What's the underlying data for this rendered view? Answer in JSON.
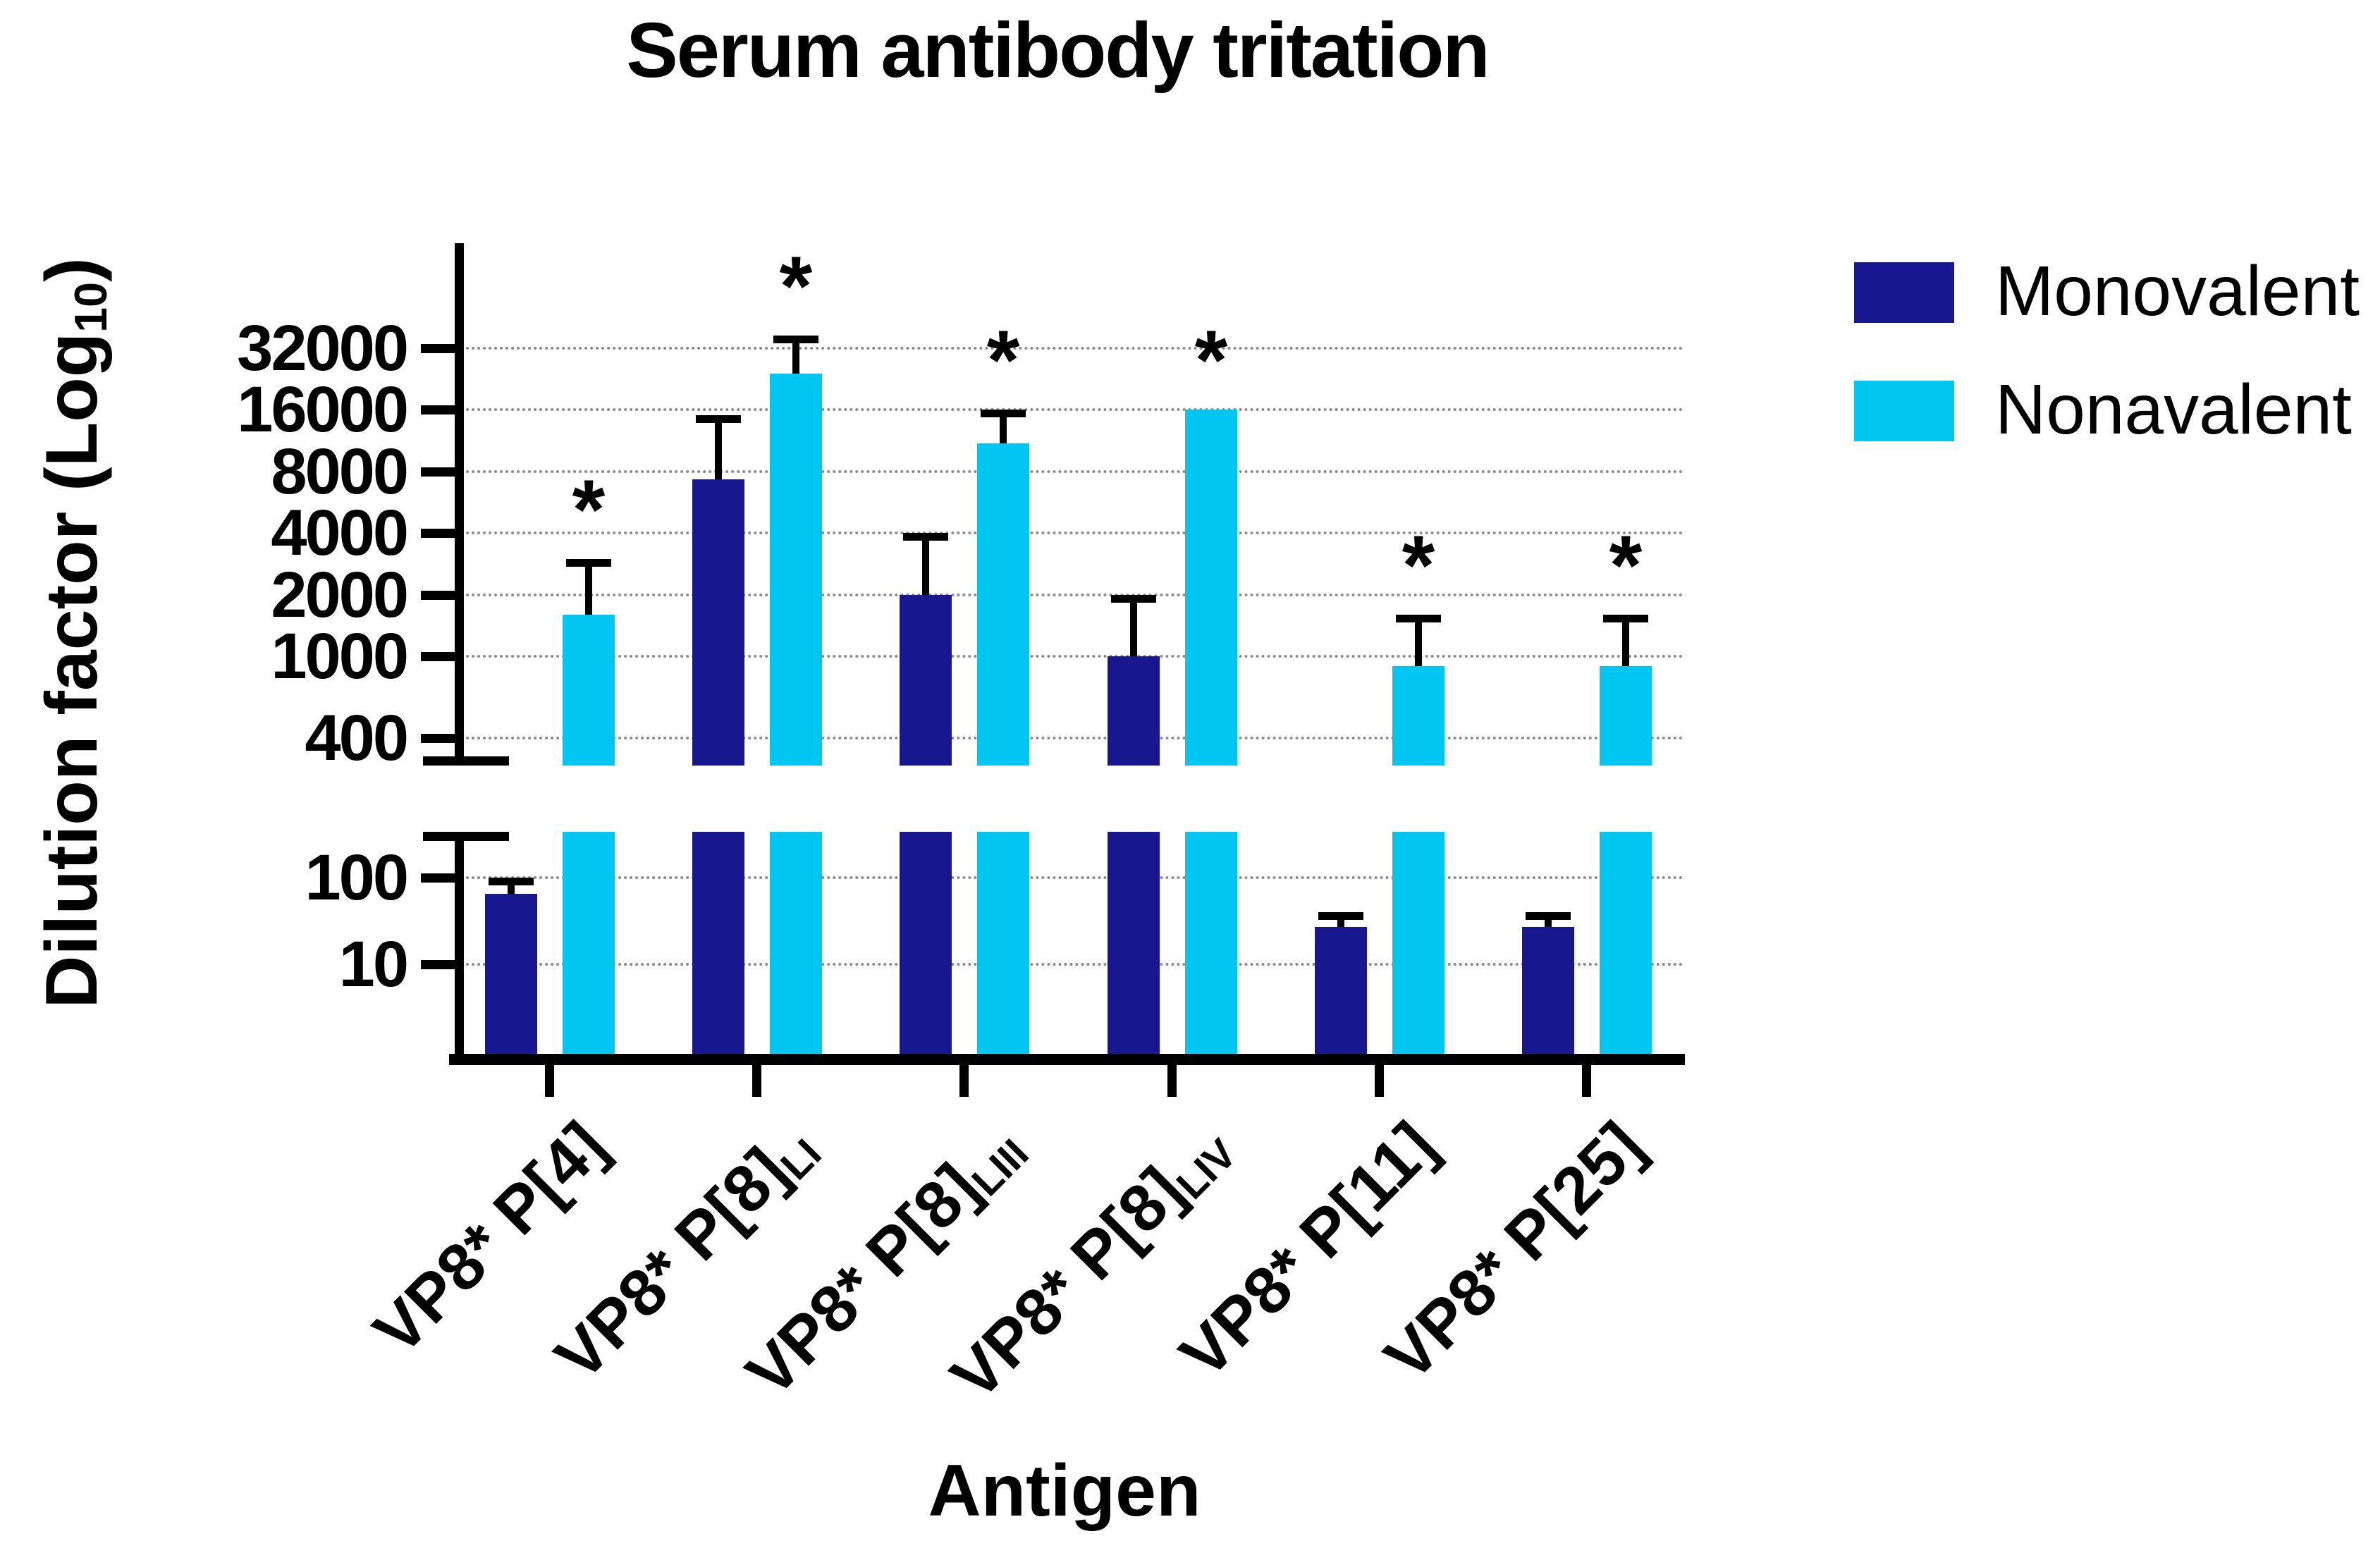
{
  "title": "Serum antibody tritation",
  "colors": {
    "monovalent": "#17178F",
    "nonavalent": "#00C6F1",
    "axis": "#000000",
    "gridline": "#8a8a8a",
    "background": "#ffffff"
  },
  "y_axis": {
    "title_pre": "Dilution factor (Log",
    "title_sub": "10",
    "title_post": ")",
    "upper_ticks": [
      "32000",
      "16000",
      "8000",
      "4000",
      "2000",
      "1000",
      "400"
    ],
    "lower_ticks": [
      "100",
      "10"
    ]
  },
  "x_axis": {
    "title": "Antigen",
    "categories": [
      {
        "main": "VP8* P[4]",
        "sub": ""
      },
      {
        "main": "VP8* P[8]",
        "sub": "LI"
      },
      {
        "main": "VP8* P[8]",
        "sub": "LIII"
      },
      {
        "main": "VP8* P[8]",
        "sub": "LIV"
      },
      {
        "main": "VP8* P[11]",
        "sub": ""
      },
      {
        "main": "VP8* P[25]",
        "sub": ""
      }
    ]
  },
  "legend": [
    {
      "label": "Monovalent",
      "color": "#17178F"
    },
    {
      "label": "Nonavalent",
      "color": "#00C6F1"
    }
  ],
  "chart_data": {
    "type": "bar",
    "title": "Serum antibody tritation",
    "xlabel": "Antigen",
    "ylabel": "Dilution factor (Log10)",
    "y_scale": "log",
    "grid": "dotted-horizontal",
    "legend_position": "top-right",
    "axis_break": {
      "lower_range": [
        1,
        330
      ],
      "upper_range": [
        350,
        64000
      ]
    },
    "upper_tick_values": [
      32000,
      16000,
      8000,
      4000,
      2000,
      1000,
      400
    ],
    "lower_tick_values": [
      100,
      10
    ],
    "categories": [
      "VP8* P[4]",
      "VP8* P[8]LI",
      "VP8* P[8]LIII",
      "VP8* P[8]LIV",
      "VP8* P[11]",
      "VP8* P[25]"
    ],
    "series": [
      {
        "name": "Monovalent",
        "color": "#17178F",
        "values": [
          65,
          7300,
          2000,
          1000,
          27,
          27
        ],
        "error_top": [
          100,
          15000,
          4000,
          2000,
          40,
          40
        ],
        "significant": [
          false,
          false,
          false,
          false,
          false,
          false
        ]
      },
      {
        "name": "Nonavalent",
        "color": "#00C6F1",
        "values": [
          1600,
          24000,
          11000,
          16000,
          900,
          900
        ],
        "error_top": [
          3000,
          37000,
          16000,
          null,
          1600,
          1600
        ],
        "significant": [
          true,
          true,
          true,
          true,
          true,
          true
        ]
      }
    ]
  }
}
